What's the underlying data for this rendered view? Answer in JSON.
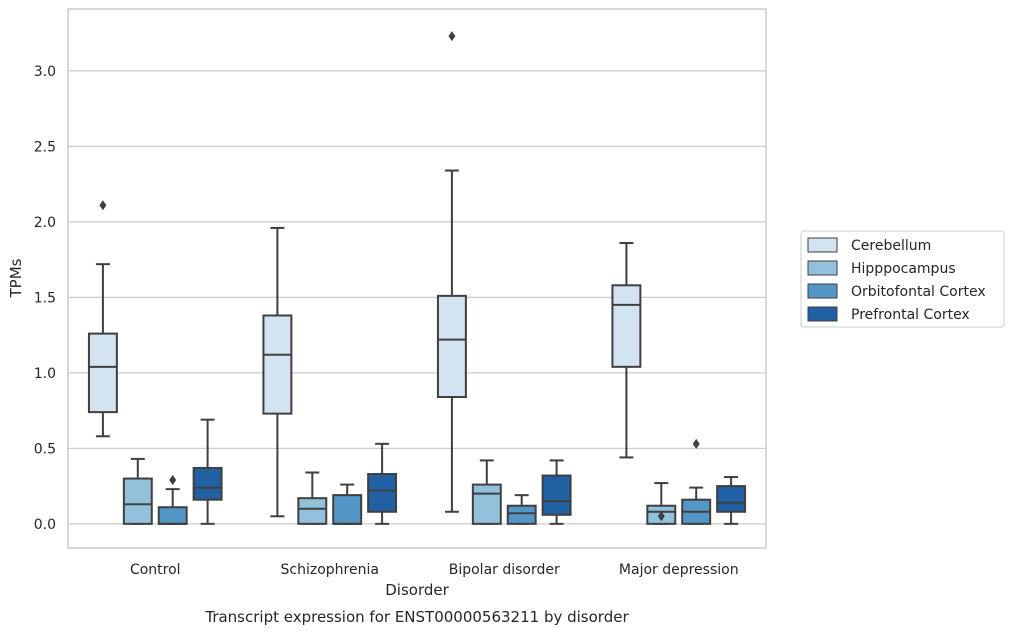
{
  "chart_data": {
    "type": "box",
    "caption": "Transcript expression for ENST00000563211 by disorder",
    "xlabel": "Disorder",
    "ylabel": "TPMs",
    "ylim": [
      -0.16,
      3.41
    ],
    "yticks": [
      0.0,
      0.5,
      1.0,
      1.5,
      2.0,
      2.5,
      3.0
    ],
    "ytick_labels": [
      "0.0",
      "0.5",
      "1.0",
      "1.5",
      "2.0",
      "2.5",
      "3.0"
    ],
    "grid": "horizontal",
    "legend_position": "right",
    "categories": [
      "Control",
      "Schizophrenia",
      "Bipolar disorder",
      "Major depression"
    ],
    "series": [
      {
        "name": "Cerebellum",
        "color": "#d3e3f2",
        "boxes": [
          {
            "q1": 0.74,
            "median": 1.04,
            "q3": 1.26,
            "whislo": 0.58,
            "whishi": 1.72,
            "fliers": [
              2.11
            ]
          },
          {
            "q1": 0.73,
            "median": 1.12,
            "q3": 1.38,
            "whislo": 0.05,
            "whishi": 1.96,
            "fliers": []
          },
          {
            "q1": 0.84,
            "median": 1.22,
            "q3": 1.51,
            "whislo": 0.08,
            "whishi": 2.34,
            "fliers": [
              3.23
            ]
          },
          {
            "q1": 1.04,
            "median": 1.45,
            "q3": 1.58,
            "whislo": 0.44,
            "whishi": 1.86,
            "fliers": []
          }
        ]
      },
      {
        "name": "Hipppocampus",
        "color": "#93c1dc",
        "boxes": [
          {
            "q1": 0.0,
            "median": 0.13,
            "q3": 0.3,
            "whislo": 0.0,
            "whishi": 0.43,
            "fliers": []
          },
          {
            "q1": 0.0,
            "median": 0.1,
            "q3": 0.17,
            "whislo": 0.0,
            "whishi": 0.34,
            "fliers": []
          },
          {
            "q1": 0.0,
            "median": 0.2,
            "q3": 0.26,
            "whislo": 0.0,
            "whishi": 0.42,
            "fliers": []
          },
          {
            "q1": 0.0,
            "median": 0.08,
            "q3": 0.12,
            "whislo": 0.0,
            "whishi": 0.27,
            "fliers": [
              0.05
            ]
          }
        ]
      },
      {
        "name": "Orbitofontal Cortex",
        "color": "#5596c8",
        "boxes": [
          {
            "q1": 0.0,
            "median": 0.0,
            "q3": 0.11,
            "whislo": 0.0,
            "whishi": 0.23,
            "fliers": [
              0.29
            ]
          },
          {
            "q1": 0.0,
            "median": 0.0,
            "q3": 0.19,
            "whislo": 0.0,
            "whishi": 0.26,
            "fliers": []
          },
          {
            "q1": 0.0,
            "median": 0.07,
            "q3": 0.12,
            "whislo": 0.0,
            "whishi": 0.19,
            "fliers": []
          },
          {
            "q1": 0.0,
            "median": 0.08,
            "q3": 0.16,
            "whislo": 0.0,
            "whishi": 0.24,
            "fliers": [
              0.53
            ]
          }
        ]
      },
      {
        "name": "Prefrontal Cortex",
        "color": "#2260a4",
        "boxes": [
          {
            "q1": 0.16,
            "median": 0.24,
            "q3": 0.37,
            "whislo": 0.0,
            "whishi": 0.69,
            "fliers": []
          },
          {
            "q1": 0.08,
            "median": 0.22,
            "q3": 0.33,
            "whislo": 0.0,
            "whishi": 0.53,
            "fliers": []
          },
          {
            "q1": 0.06,
            "median": 0.15,
            "q3": 0.32,
            "whislo": 0.0,
            "whishi": 0.42,
            "fliers": []
          },
          {
            "q1": 0.08,
            "median": 0.14,
            "q3": 0.25,
            "whislo": 0.0,
            "whishi": 0.31,
            "fliers": []
          }
        ]
      }
    ]
  }
}
